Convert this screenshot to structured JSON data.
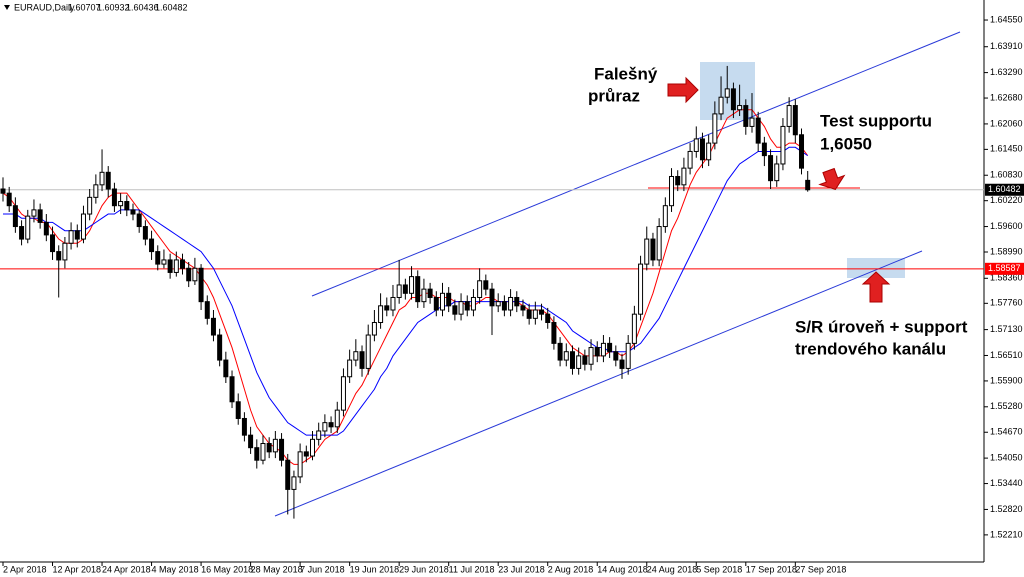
{
  "chart_data": {
    "type": "candlestick",
    "symbol": "EURAUD,Daily",
    "ylim": [
      1.5156,
      1.6503
    ],
    "yticks": [
      {
        "value": 1.6455,
        "label": "1.64550"
      },
      {
        "value": 1.6391,
        "label": "1.63910"
      },
      {
        "value": 1.6329,
        "label": "1.63290"
      },
      {
        "value": 1.6268,
        "label": "1.62680"
      },
      {
        "value": 1.6206,
        "label": "1.62060"
      },
      {
        "value": 1.6145,
        "label": "1.61450"
      },
      {
        "value": 1.6083,
        "label": "1.60830"
      },
      {
        "value": 1.6022,
        "label": "1.60220"
      },
      {
        "value": 1.596,
        "label": "1.59600"
      },
      {
        "value": 1.5899,
        "label": "1.58990"
      },
      {
        "value": 1.5836,
        "label": "1.58360"
      },
      {
        "value": 1.5776,
        "label": "1.57760"
      },
      {
        "value": 1.5713,
        "label": "1.57130"
      },
      {
        "value": 1.5651,
        "label": "1.56510"
      },
      {
        "value": 1.559,
        "label": "1.55900"
      },
      {
        "value": 1.5528,
        "label": "1.55280"
      },
      {
        "value": 1.5467,
        "label": "1.54670"
      },
      {
        "value": 1.5405,
        "label": "1.54050"
      },
      {
        "value": 1.5344,
        "label": "1.53440"
      },
      {
        "value": 1.5282,
        "label": "1.52820"
      },
      {
        "value": 1.5221,
        "label": "1.52210"
      }
    ],
    "hlines": [
      {
        "value": 1.58587,
        "color": "#ff0000"
      }
    ],
    "categories": [
      "2 Apr 2018",
      null,
      null,
      null,
      null,
      null,
      null,
      null,
      "12 Apr 2018",
      null,
      null,
      null,
      null,
      null,
      null,
      null,
      "24 Apr 2018",
      null,
      null,
      null,
      null,
      null,
      null,
      null,
      "4 May 2018",
      null,
      null,
      null,
      null,
      null,
      null,
      null,
      "16 May 2018",
      null,
      null,
      null,
      null,
      null,
      null,
      null,
      "28 May 2018",
      null,
      null,
      null,
      null,
      null,
      null,
      null,
      "7 Jun 2018",
      null,
      null,
      null,
      null,
      null,
      null,
      null,
      "19 Jun 2018",
      null,
      null,
      null,
      null,
      null,
      null,
      null,
      "29 Jun 2018",
      null,
      null,
      null,
      null,
      null,
      null,
      null,
      "11 Jul 2018",
      null,
      null,
      null,
      null,
      null,
      null,
      null,
      "23 Jul 2018",
      null,
      null,
      null,
      null,
      null,
      null,
      null,
      "2 Aug 2018",
      null,
      null,
      null,
      null,
      null,
      null,
      null,
      "14 Aug 2018",
      null,
      null,
      null,
      null,
      null,
      null,
      null,
      "24 Aug 2018",
      null,
      null,
      null,
      null,
      null,
      null,
      null,
      "5 Sep 2018",
      null,
      null,
      null,
      null,
      null,
      null,
      null,
      "17 Sep 2018",
      null,
      null,
      null,
      null,
      null,
      null,
      null,
      "27 Sep 2018",
      null,
      null
    ],
    "candles": [
      [
        1.605,
        1.6078,
        1.602,
        1.604
      ],
      [
        1.604,
        1.6055,
        1.5995,
        1.601
      ],
      [
        1.601,
        1.603,
        1.5945,
        1.596
      ],
      [
        1.596,
        1.5975,
        1.5915,
        1.593
      ],
      [
        1.593,
        1.6,
        1.592,
        1.5985
      ],
      [
        1.5985,
        1.6025,
        1.597,
        1.6
      ],
      [
        1.6,
        1.6015,
        1.5955,
        1.597
      ],
      [
        1.597,
        1.599,
        1.5925,
        1.594
      ],
      [
        1.594,
        1.596,
        1.588,
        1.59
      ],
      [
        1.59,
        1.5915,
        1.579,
        1.588
      ],
      [
        1.588,
        1.5935,
        1.586,
        1.592
      ],
      [
        1.592,
        1.597,
        1.5905,
        1.595
      ],
      [
        1.595,
        1.5965,
        1.591,
        1.593
      ],
      [
        1.593,
        1.601,
        1.592,
        1.599
      ],
      [
        1.599,
        1.605,
        1.5975,
        1.603
      ],
      [
        1.603,
        1.6085,
        1.6015,
        1.606
      ],
      [
        1.606,
        1.6145,
        1.6045,
        1.609
      ],
      [
        1.609,
        1.6105,
        1.603,
        1.605
      ],
      [
        1.605,
        1.6065,
        1.5995,
        1.601
      ],
      [
        1.601,
        1.604,
        1.599,
        1.602
      ],
      [
        1.602,
        1.6035,
        1.5985,
        1.6
      ],
      [
        1.6,
        1.6015,
        1.5975,
        1.599
      ],
      [
        1.599,
        1.6,
        1.5945,
        1.596
      ],
      [
        1.596,
        1.5975,
        1.5915,
        1.593
      ],
      [
        1.593,
        1.595,
        1.588,
        1.59
      ],
      [
        1.59,
        1.5915,
        1.5855,
        1.587
      ],
      [
        1.587,
        1.5905,
        1.586,
        1.588
      ],
      [
        1.588,
        1.5895,
        1.5835,
        1.585
      ],
      [
        1.585,
        1.59,
        1.584,
        1.588
      ],
      [
        1.588,
        1.5895,
        1.5845,
        1.586
      ],
      [
        1.586,
        1.5875,
        1.5815,
        1.583
      ],
      [
        1.583,
        1.5885,
        1.582,
        1.586
      ],
      [
        1.586,
        1.587,
        1.576,
        1.578
      ],
      [
        1.578,
        1.5795,
        1.5725,
        1.574
      ],
      [
        1.574,
        1.576,
        1.5685,
        1.57
      ],
      [
        1.57,
        1.5715,
        1.5625,
        1.564
      ],
      [
        1.564,
        1.566,
        1.5585,
        1.56
      ],
      [
        1.56,
        1.5615,
        1.5525,
        1.554
      ],
      [
        1.554,
        1.556,
        1.5485,
        1.55
      ],
      [
        1.55,
        1.5515,
        1.5445,
        1.546
      ],
      [
        1.546,
        1.548,
        1.5415,
        1.543
      ],
      [
        1.543,
        1.545,
        1.538,
        1.54
      ],
      [
        1.54,
        1.546,
        1.539,
        1.544
      ],
      [
        1.544,
        1.5455,
        1.5405,
        1.542
      ],
      [
        1.542,
        1.547,
        1.5405,
        1.545
      ],
      [
        1.545,
        1.5465,
        1.5385,
        1.54
      ],
      [
        1.54,
        1.5415,
        1.527,
        1.533
      ],
      [
        1.533,
        1.5375,
        1.526,
        1.536
      ],
      [
        1.536,
        1.544,
        1.5345,
        1.542
      ],
      [
        1.542,
        1.5435,
        1.5395,
        1.541
      ],
      [
        1.541,
        1.547,
        1.54,
        1.545
      ],
      [
        1.545,
        1.549,
        1.5435,
        1.547
      ],
      [
        1.547,
        1.551,
        1.5455,
        1.549
      ],
      [
        1.549,
        1.5505,
        1.5465,
        1.548
      ],
      [
        1.548,
        1.554,
        1.5465,
        1.552
      ],
      [
        1.552,
        1.562,
        1.5505,
        1.56
      ],
      [
        1.56,
        1.5665,
        1.5585,
        1.564
      ],
      [
        1.564,
        1.569,
        1.5625,
        1.566
      ],
      [
        1.566,
        1.5675,
        1.56,
        1.562
      ],
      [
        1.562,
        1.5725,
        1.5605,
        1.57
      ],
      [
        1.57,
        1.576,
        1.5685,
        1.573
      ],
      [
        1.573,
        1.58,
        1.5715,
        1.577
      ],
      [
        1.577,
        1.579,
        1.5745,
        1.576
      ],
      [
        1.576,
        1.582,
        1.5745,
        1.579
      ],
      [
        1.579,
        1.588,
        1.5775,
        1.582
      ],
      [
        1.582,
        1.5835,
        1.5785,
        1.58
      ],
      [
        1.58,
        1.5865,
        1.5785,
        1.584
      ],
      [
        1.584,
        1.5855,
        1.5765,
        1.578
      ],
      [
        1.578,
        1.5835,
        1.5765,
        1.581
      ],
      [
        1.581,
        1.5825,
        1.5775,
        1.579
      ],
      [
        1.579,
        1.5805,
        1.5745,
        1.576
      ],
      [
        1.576,
        1.5825,
        1.5745,
        1.58
      ],
      [
        1.58,
        1.5815,
        1.5755,
        1.577
      ],
      [
        1.577,
        1.5785,
        1.5735,
        1.575
      ],
      [
        1.575,
        1.58,
        1.5735,
        1.578
      ],
      [
        1.578,
        1.5795,
        1.5745,
        1.576
      ],
      [
        1.576,
        1.581,
        1.5745,
        1.579
      ],
      [
        1.579,
        1.586,
        1.5775,
        1.583
      ],
      [
        1.583,
        1.5845,
        1.5795,
        1.581
      ],
      [
        1.581,
        1.5825,
        1.57,
        1.577
      ],
      [
        1.577,
        1.58,
        1.5755,
        1.578
      ],
      [
        1.578,
        1.5795,
        1.5745,
        1.576
      ],
      [
        1.576,
        1.581,
        1.5745,
        1.579
      ],
      [
        1.579,
        1.5805,
        1.5755,
        1.577
      ],
      [
        1.577,
        1.5785,
        1.5745,
        1.576
      ],
      [
        1.576,
        1.5775,
        1.5725,
        1.574
      ],
      [
        1.574,
        1.578,
        1.5725,
        1.576
      ],
      [
        1.576,
        1.5775,
        1.5735,
        1.575
      ],
      [
        1.575,
        1.5765,
        1.5715,
        1.573
      ],
      [
        1.573,
        1.5745,
        1.5665,
        1.568
      ],
      [
        1.568,
        1.5695,
        1.5625,
        1.564
      ],
      [
        1.564,
        1.568,
        1.5625,
        1.566
      ],
      [
        1.566,
        1.5675,
        1.5605,
        1.562
      ],
      [
        1.562,
        1.567,
        1.5605,
        1.565
      ],
      [
        1.565,
        1.5665,
        1.5615,
        1.563
      ],
      [
        1.563,
        1.569,
        1.5615,
        1.567
      ],
      [
        1.567,
        1.5685,
        1.5635,
        1.565
      ],
      [
        1.565,
        1.57,
        1.5635,
        1.568
      ],
      [
        1.568,
        1.5695,
        1.5645,
        1.566
      ],
      [
        1.566,
        1.5675,
        1.5625,
        1.564
      ],
      [
        1.564,
        1.5655,
        1.5595,
        1.562
      ],
      [
        1.562,
        1.57,
        1.5605,
        1.568
      ],
      [
        1.568,
        1.577,
        1.5665,
        1.575
      ],
      [
        1.575,
        1.589,
        1.5735,
        1.587
      ],
      [
        1.587,
        1.596,
        1.5855,
        1.593
      ],
      [
        1.593,
        1.5945,
        1.5865,
        1.588
      ],
      [
        1.588,
        1.598,
        1.5865,
        1.596
      ],
      [
        1.596,
        1.603,
        1.5945,
        1.601
      ],
      [
        1.601,
        1.61,
        1.5995,
        1.608
      ],
      [
        1.608,
        1.6095,
        1.6045,
        1.606
      ],
      [
        1.606,
        1.6125,
        1.6045,
        1.61
      ],
      [
        1.61,
        1.616,
        1.6085,
        1.614
      ],
      [
        1.614,
        1.62,
        1.6125,
        1.617
      ],
      [
        1.617,
        1.6185,
        1.61,
        1.612
      ],
      [
        1.612,
        1.618,
        1.6105,
        1.616
      ],
      [
        1.616,
        1.626,
        1.6145,
        1.623
      ],
      [
        1.623,
        1.632,
        1.6215,
        1.627
      ],
      [
        1.627,
        1.6345,
        1.6255,
        1.629
      ],
      [
        1.629,
        1.6305,
        1.622,
        1.624
      ],
      [
        1.624,
        1.63,
        1.6225,
        1.625
      ],
      [
        1.625,
        1.6265,
        1.618,
        1.62
      ],
      [
        1.62,
        1.628,
        1.6185,
        1.622
      ],
      [
        1.622,
        1.6235,
        1.614,
        1.616
      ],
      [
        1.616,
        1.6175,
        1.6105,
        1.613
      ],
      [
        1.613,
        1.6145,
        1.605,
        1.607
      ],
      [
        1.607,
        1.613,
        1.6055,
        1.611
      ],
      [
        1.611,
        1.622,
        1.6095,
        1.62
      ],
      [
        1.62,
        1.627,
        1.6185,
        1.625
      ],
      [
        1.625,
        1.6265,
        1.616,
        1.618
      ],
      [
        1.618,
        1.6195,
        1.6085,
        1.61
      ],
      [
        1.60707,
        1.60932,
        1.60436,
        1.60482
      ]
    ],
    "ma_lines": [
      {
        "color": "#ff0000",
        "values": [
          1.604,
          1.603,
          1.601,
          1.599,
          1.598,
          1.598,
          1.597,
          1.597,
          1.595,
          1.593,
          1.592,
          1.592,
          1.592,
          1.593,
          1.595,
          1.598,
          1.601,
          1.603,
          1.604,
          1.604,
          1.604,
          1.602,
          1.6,
          1.598,
          1.596,
          1.594,
          1.592,
          1.59,
          1.589,
          1.588,
          1.587,
          1.586,
          1.584,
          1.582,
          1.579,
          1.575,
          1.571,
          1.567,
          1.562,
          1.557,
          1.552,
          1.548,
          1.546,
          1.544,
          1.543,
          1.542,
          1.54,
          1.539,
          1.539,
          1.54,
          1.541,
          1.543,
          1.545,
          1.546,
          1.547,
          1.55,
          1.553,
          1.556,
          1.558,
          1.561,
          1.564,
          1.567,
          1.57,
          1.573,
          1.576,
          1.577,
          1.579,
          1.579,
          1.58,
          1.58,
          1.579,
          1.579,
          1.579,
          1.578,
          1.578,
          1.577,
          1.577,
          1.578,
          1.579,
          1.579,
          1.578,
          1.578,
          1.578,
          1.578,
          1.577,
          1.576,
          1.576,
          1.576,
          1.575,
          1.573,
          1.571,
          1.569,
          1.567,
          1.566,
          1.565,
          1.565,
          1.565,
          1.565,
          1.566,
          1.566,
          1.565,
          1.566,
          1.568,
          1.572,
          1.576,
          1.58,
          1.585,
          1.59,
          1.595,
          1.598,
          1.602,
          1.606,
          1.609,
          1.611,
          1.613,
          1.616,
          1.619,
          1.622,
          1.623,
          1.624,
          1.624,
          1.624,
          1.622,
          1.62,
          1.617,
          1.615,
          1.615,
          1.616,
          1.616,
          1.615,
          1.613
        ]
      },
      {
        "color": "#0000ff",
        "values": [
          1.599,
          1.599,
          1.599,
          1.598,
          1.598,
          1.598,
          1.598,
          1.597,
          1.597,
          1.596,
          1.595,
          1.595,
          1.595,
          1.595,
          1.596,
          1.597,
          1.598,
          1.599,
          1.599,
          1.6,
          1.6,
          1.6,
          1.6,
          1.599,
          1.598,
          1.597,
          1.596,
          1.595,
          1.594,
          1.593,
          1.592,
          1.591,
          1.59,
          1.588,
          1.586,
          1.583,
          1.58,
          1.577,
          1.573,
          1.569,
          1.565,
          1.561,
          1.558,
          1.555,
          1.553,
          1.551,
          1.549,
          1.548,
          1.547,
          1.546,
          1.546,
          1.546,
          1.546,
          1.546,
          1.546,
          1.547,
          1.549,
          1.551,
          1.553,
          1.555,
          1.557,
          1.56,
          1.562,
          1.565,
          1.567,
          1.569,
          1.571,
          1.573,
          1.574,
          1.575,
          1.576,
          1.577,
          1.577,
          1.578,
          1.578,
          1.578,
          1.578,
          1.578,
          1.578,
          1.578,
          1.578,
          1.578,
          1.578,
          1.578,
          1.578,
          1.577,
          1.577,
          1.577,
          1.576,
          1.575,
          1.574,
          1.573,
          1.571,
          1.57,
          1.569,
          1.568,
          1.567,
          1.567,
          1.566,
          1.566,
          1.566,
          1.566,
          1.567,
          1.568,
          1.57,
          1.572,
          1.574,
          1.577,
          1.58,
          1.583,
          1.586,
          1.589,
          1.592,
          1.595,
          1.598,
          1.601,
          1.604,
          1.607,
          1.609,
          1.611,
          1.612,
          1.613,
          1.614,
          1.614,
          1.614,
          1.614,
          1.614,
          1.615,
          1.615,
          1.614,
          1.613
        ]
      }
    ],
    "annotations": [
      "Falešný",
      "průraz",
      "Test supportu",
      "1,6050",
      "S/R úroveň + support",
      "trendového kanálu"
    ]
  }
}
